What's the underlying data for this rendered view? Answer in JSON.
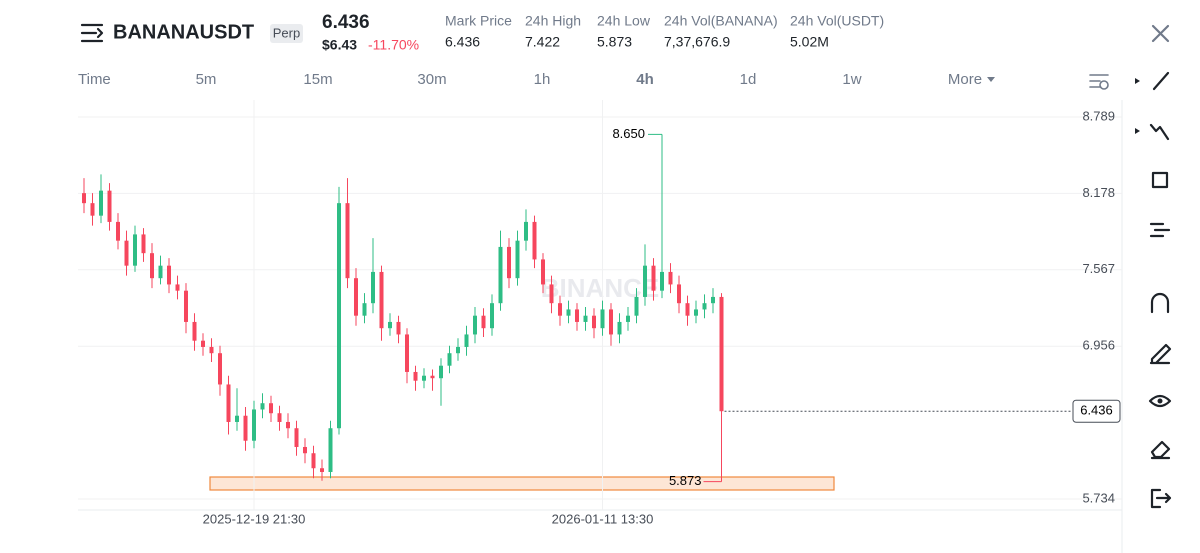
{
  "header": {
    "symbol": "BANANAUSDT",
    "badge": "Perp",
    "price": "6.436",
    "usd_price": "$6.43",
    "change": "-11.70%",
    "stats": [
      {
        "label": "Mark Price",
        "value": "6.436"
      },
      {
        "label": "24h High",
        "value": "7.422"
      },
      {
        "label": "24h Low",
        "value": "5.873"
      },
      {
        "label": "24h Vol(BANANA)",
        "value": "7,37,676.9"
      },
      {
        "label": "24h Vol(USDT)",
        "value": "5.02M"
      }
    ]
  },
  "intervals": [
    "Time",
    "5m",
    "15m",
    "30m",
    "1h",
    "4h",
    "1d",
    "1w",
    "More"
  ],
  "chart_data": {
    "type": "candlestick",
    "watermark": "BINANCE",
    "x": [
      null,
      null,
      null,
      null,
      null,
      null,
      null,
      null,
      null,
      null,
      null,
      null,
      null,
      null,
      null,
      null,
      null,
      null,
      null,
      null,
      "2025-12-19 21:30",
      null,
      null,
      null,
      null,
      null,
      null,
      null,
      null,
      null,
      null,
      null,
      null,
      null,
      null,
      null,
      null,
      null,
      null,
      null,
      null,
      null,
      null,
      null,
      null,
      null,
      null,
      null,
      null,
      null,
      null,
      null,
      null,
      null,
      null,
      null,
      null,
      null,
      null,
      null,
      null,
      "2026-01-11 13:30",
      null,
      null,
      null,
      null,
      null,
      null,
      null,
      null,
      null,
      null,
      null,
      null,
      null,
      null
    ],
    "open": [
      8.18,
      8.1,
      8.0,
      8.2,
      7.95,
      7.8,
      7.6,
      7.85,
      7.7,
      7.5,
      7.6,
      7.45,
      7.4,
      7.15,
      7.0,
      6.95,
      6.9,
      6.65,
      6.35,
      6.4,
      6.2,
      6.45,
      6.5,
      6.42,
      6.35,
      6.3,
      6.15,
      6.1,
      5.98,
      5.95,
      6.3,
      8.1,
      7.5,
      7.2,
      7.3,
      7.55,
      7.1,
      7.15,
      7.05,
      6.75,
      6.68,
      6.72,
      6.7,
      6.8,
      6.9,
      6.95,
      7.05,
      7.2,
      7.1,
      7.3,
      7.75,
      7.5,
      7.8,
      7.95,
      7.65,
      7.45,
      7.3,
      7.2,
      7.25,
      7.15,
      7.2,
      7.1,
      7.25,
      7.05,
      7.15,
      7.2,
      7.35,
      7.6,
      7.4,
      7.55,
      7.45,
      7.3,
      7.2,
      7.25,
      7.3,
      7.35
    ],
    "high": [
      8.3,
      8.18,
      8.33,
      8.26,
      8.02,
      7.88,
      7.92,
      7.9,
      7.78,
      7.68,
      7.66,
      7.52,
      7.46,
      7.22,
      7.06,
      7.02,
      6.96,
      6.72,
      6.62,
      6.47,
      6.52,
      6.58,
      6.56,
      6.48,
      6.42,
      6.36,
      6.22,
      6.16,
      6.05,
      6.36,
      8.23,
      8.3,
      7.58,
      7.38,
      7.82,
      7.6,
      7.22,
      7.2,
      7.1,
      6.8,
      6.78,
      6.77,
      6.86,
      6.96,
      7.02,
      7.12,
      7.27,
      7.26,
      7.37,
      7.88,
      7.82,
      7.88,
      8.05,
      8.0,
      7.7,
      7.52,
      7.36,
      7.32,
      7.3,
      7.27,
      7.26,
      7.32,
      7.3,
      7.22,
      7.27,
      7.42,
      7.77,
      7.66,
      8.65,
      7.62,
      7.52,
      7.36,
      7.32,
      7.37,
      7.42,
      7.38
    ],
    "low": [
      8.02,
      7.92,
      7.94,
      7.88,
      7.73,
      7.52,
      7.55,
      7.63,
      7.42,
      7.45,
      7.38,
      7.33,
      7.06,
      6.92,
      6.88,
      6.83,
      6.56,
      6.25,
      6.28,
      6.12,
      6.14,
      6.38,
      6.35,
      6.28,
      6.22,
      6.08,
      6.02,
      5.9,
      5.88,
      5.9,
      6.25,
      7.42,
      7.12,
      7.14,
      7.22,
      7.0,
      7.04,
      6.98,
      6.66,
      6.6,
      6.62,
      6.6,
      6.48,
      6.74,
      6.84,
      6.88,
      6.98,
      7.03,
      7.04,
      7.24,
      7.42,
      7.44,
      7.72,
      7.58,
      7.38,
      7.22,
      7.12,
      7.14,
      7.08,
      7.08,
      7.02,
      7.04,
      6.96,
      6.98,
      7.08,
      7.14,
      7.28,
      7.32,
      7.34,
      7.38,
      7.22,
      7.12,
      7.14,
      7.18,
      7.22,
      5.873
    ],
    "close": [
      8.1,
      8.0,
      8.2,
      7.95,
      7.8,
      7.6,
      7.85,
      7.7,
      7.5,
      7.6,
      7.45,
      7.4,
      7.15,
      7.0,
      6.95,
      6.9,
      6.65,
      6.35,
      6.4,
      6.2,
      6.45,
      6.5,
      6.42,
      6.35,
      6.3,
      6.15,
      6.1,
      5.98,
      5.95,
      6.3,
      8.1,
      7.5,
      7.2,
      7.3,
      7.55,
      7.1,
      7.15,
      7.05,
      6.75,
      6.68,
      6.72,
      6.7,
      6.8,
      6.9,
      6.95,
      7.05,
      7.2,
      7.1,
      7.3,
      7.75,
      7.5,
      7.8,
      7.95,
      7.65,
      7.45,
      7.3,
      7.2,
      7.25,
      7.15,
      7.2,
      7.1,
      7.25,
      7.05,
      7.15,
      7.2,
      7.35,
      7.6,
      7.4,
      7.55,
      7.45,
      7.3,
      7.2,
      7.25,
      7.3,
      7.35,
      6.436
    ],
    "up_color": "#2ebd85",
    "down_color": "#f6465d",
    "ylim": [
      5.646,
      8.925
    ],
    "yticks": [
      {
        "value": 5.734,
        "label": "5.734"
      },
      {
        "value": 6.956,
        "label": "6.956"
      },
      {
        "value": 7.567,
        "label": "7.567"
      },
      {
        "value": 8.178,
        "label": "8.178"
      },
      {
        "value": 8.789,
        "label": "8.789"
      }
    ],
    "grid": true,
    "high_marker": {
      "index": 68,
      "value": 8.65,
      "label": "8.650"
    },
    "low_marker": {
      "index": 75,
      "value": 5.873
    },
    "last_price": 6.436
  }
}
